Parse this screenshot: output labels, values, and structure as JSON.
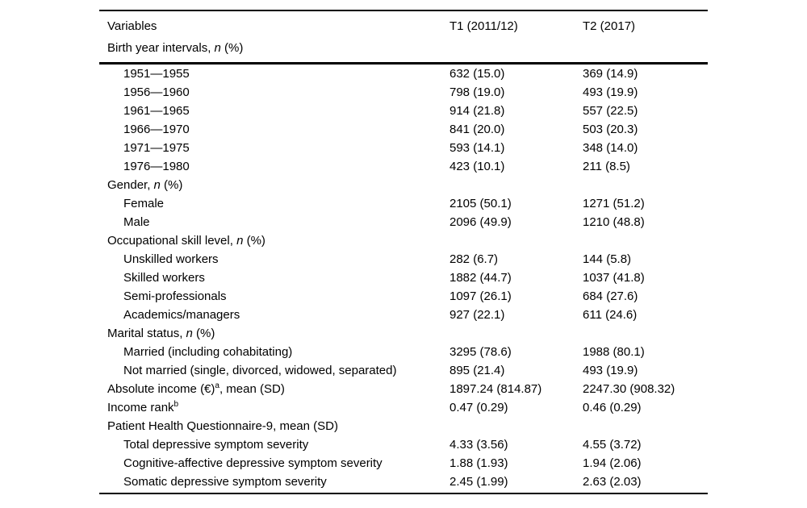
{
  "table": {
    "columns": [
      "Variables",
      "T1 (2011/12)",
      "T2 (2017)"
    ],
    "header_section": {
      "parts": [
        {
          "t": "Birth year intervals, "
        },
        {
          "t": "n",
          "style": "italic"
        },
        {
          "t": " (%)"
        }
      ]
    },
    "rows": [
      {
        "indent": 1,
        "parts": [
          {
            "t": "1951—1955"
          }
        ],
        "t1": "632 (15.0)",
        "t2": "369 (14.9)"
      },
      {
        "indent": 1,
        "parts": [
          {
            "t": "1956—1960"
          }
        ],
        "t1": "798 (19.0)",
        "t2": "493 (19.9)"
      },
      {
        "indent": 1,
        "parts": [
          {
            "t": "1961—1965"
          }
        ],
        "t1": "914 (21.8)",
        "t2": "557 (22.5)"
      },
      {
        "indent": 1,
        "parts": [
          {
            "t": "1966—1970"
          }
        ],
        "t1": "841 (20.0)",
        "t2": "503 (20.3)"
      },
      {
        "indent": 1,
        "parts": [
          {
            "t": "1971—1975"
          }
        ],
        "t1": "593 (14.1)",
        "t2": "348 (14.0)"
      },
      {
        "indent": 1,
        "parts": [
          {
            "t": "1976—1980"
          }
        ],
        "t1": "423 (10.1)",
        "t2": "211 (8.5)"
      },
      {
        "indent": 0,
        "parts": [
          {
            "t": "Gender, "
          },
          {
            "t": "n",
            "style": "italic"
          },
          {
            "t": " (%)"
          }
        ],
        "t1": "",
        "t2": ""
      },
      {
        "indent": 1,
        "parts": [
          {
            "t": "Female"
          }
        ],
        "t1": "2105 (50.1)",
        "t2": "1271 (51.2)"
      },
      {
        "indent": 1,
        "parts": [
          {
            "t": "Male"
          }
        ],
        "t1": "2096 (49.9)",
        "t2": "1210 (48.8)"
      },
      {
        "indent": 0,
        "parts": [
          {
            "t": "Occupational skill level, "
          },
          {
            "t": "n",
            "style": "italic"
          },
          {
            "t": " (%)"
          }
        ],
        "t1": "",
        "t2": ""
      },
      {
        "indent": 1,
        "parts": [
          {
            "t": "Unskilled workers"
          }
        ],
        "t1": "282 (6.7)",
        "t2": "144 (5.8)"
      },
      {
        "indent": 1,
        "parts": [
          {
            "t": "Skilled workers"
          }
        ],
        "t1": "1882 (44.7)",
        "t2": "1037 (41.8)"
      },
      {
        "indent": 1,
        "parts": [
          {
            "t": "Semi-professionals"
          }
        ],
        "t1": "1097 (26.1)",
        "t2": "684 (27.6)"
      },
      {
        "indent": 1,
        "parts": [
          {
            "t": "Academics/managers"
          }
        ],
        "t1": "927 (22.1)",
        "t2": "611 (24.6)"
      },
      {
        "indent": 0,
        "parts": [
          {
            "t": "Marital status, "
          },
          {
            "t": "n",
            "style": "italic"
          },
          {
            "t": " (%)"
          }
        ],
        "t1": "",
        "t2": ""
      },
      {
        "indent": 1,
        "parts": [
          {
            "t": "Married (including cohabitating)"
          }
        ],
        "t1": "3295 (78.6)",
        "t2": "1988 (80.1)"
      },
      {
        "indent": 1,
        "parts": [
          {
            "t": "Not married (single, divorced, widowed, separated)"
          }
        ],
        "t1": "895 (21.4)",
        "t2": "493 (19.9)"
      },
      {
        "indent": 0,
        "parts": [
          {
            "t": "Absolute income (€)"
          },
          {
            "t": "a",
            "style": "sup"
          },
          {
            "t": ", mean (SD)"
          }
        ],
        "t1": "1897.24 (814.87)",
        "t2": "2247.30 (908.32)"
      },
      {
        "indent": 0,
        "parts": [
          {
            "t": "Income rank"
          },
          {
            "t": "b",
            "style": "sup"
          }
        ],
        "t1": "0.47 (0.29)",
        "t2": "0.46 (0.29)"
      },
      {
        "indent": 0,
        "parts": [
          {
            "t": "Patient Health Questionnaire-9, mean (SD)"
          }
        ],
        "t1": "",
        "t2": ""
      },
      {
        "indent": 1,
        "parts": [
          {
            "t": "Total depressive symptom severity"
          }
        ],
        "t1": "4.33 (3.56)",
        "t2": "4.55 (3.72)"
      },
      {
        "indent": 1,
        "parts": [
          {
            "t": "Cognitive-affective depressive symptom severity"
          }
        ],
        "t1": "1.88 (1.93)",
        "t2": "1.94 (2.06)"
      },
      {
        "indent": 1,
        "parts": [
          {
            "t": "Somatic depressive symptom severity"
          }
        ],
        "t1": "2.45 (1.99)",
        "t2": "2.63 (2.03)"
      }
    ]
  }
}
